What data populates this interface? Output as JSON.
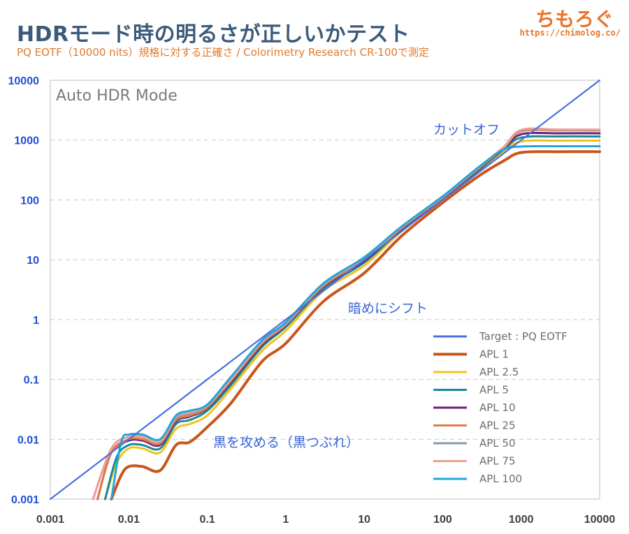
{
  "header": {
    "title": "HDRモード時の明るさが正しいかテスト",
    "subtitle": "PQ EOTF（10000 nits）規格に対する正確さ / Colorimetry Research CR-100で測定",
    "brand": "ちもろぐ",
    "url": "https://chimolog.co/"
  },
  "chart_data": {
    "type": "line",
    "xscale": "log",
    "yscale": "log",
    "xlim": [
      0.001,
      10000
    ],
    "ylim": [
      0.001,
      10000
    ],
    "x_ticks": [
      "0.001",
      "0.01",
      "0.1",
      "1",
      "10",
      "100",
      "1000",
      "10000"
    ],
    "y_ticks": [
      "0.001",
      "0.01",
      "0.1",
      "1",
      "10",
      "100",
      "1000",
      "10000"
    ],
    "grid": "horizontal-dashed",
    "legend_position": "bottom-right",
    "mode_label": "Auto HDR Mode",
    "annotations": [
      "カットオフ",
      "暗めにシフト",
      "黒を攻める（黒つぶれ）"
    ],
    "series": [
      {
        "name": "Target : PQ EOTF",
        "color": "#4a6fe0",
        "x": [
          0.001,
          10000
        ],
        "y": [
          0.001,
          10000
        ]
      },
      {
        "name": "APL 1",
        "color": "#c9561c",
        "x": [
          0.006,
          0.008,
          0.01,
          0.015,
          0.025,
          0.04,
          0.06,
          0.1,
          0.2,
          0.5,
          1,
          3,
          10,
          30,
          100,
          300,
          600,
          1000,
          3000,
          10000
        ],
        "y": [
          0.001,
          0.0025,
          0.0035,
          0.0035,
          0.003,
          0.008,
          0.009,
          0.016,
          0.04,
          0.2,
          0.4,
          2.0,
          6,
          25,
          90,
          260,
          450,
          620,
          640,
          640
        ]
      },
      {
        "name": "APL 2.5",
        "color": "#f2c21a",
        "x": [
          0.005,
          0.007,
          0.01,
          0.015,
          0.025,
          0.04,
          0.06,
          0.1,
          0.2,
          0.5,
          1,
          3,
          10,
          30,
          100,
          300,
          600,
          1000,
          3000,
          10000
        ],
        "y": [
          0.001,
          0.004,
          0.007,
          0.007,
          0.006,
          0.015,
          0.018,
          0.025,
          0.07,
          0.3,
          0.65,
          3.0,
          8,
          30,
          100,
          320,
          650,
          950,
          980,
          980
        ]
      },
      {
        "name": "APL 5",
        "color": "#1a8a9a",
        "x": [
          0.005,
          0.007,
          0.01,
          0.015,
          0.025,
          0.04,
          0.06,
          0.1,
          0.2,
          0.5,
          1,
          3,
          10,
          30,
          100,
          300,
          600,
          1000,
          3000,
          10000
        ],
        "y": [
          0.001,
          0.005,
          0.008,
          0.008,
          0.007,
          0.018,
          0.021,
          0.03,
          0.08,
          0.35,
          0.75,
          3.3,
          9,
          32,
          105,
          330,
          700,
          1100,
          1150,
          1150
        ]
      },
      {
        "name": "APL 10",
        "color": "#6b1f7a",
        "x": [
          0.004,
          0.006,
          0.01,
          0.015,
          0.025,
          0.04,
          0.06,
          0.1,
          0.2,
          0.5,
          1,
          3,
          10,
          30,
          100,
          300,
          600,
          1000,
          3000,
          10000
        ],
        "y": [
          0.001,
          0.006,
          0.0095,
          0.0095,
          0.008,
          0.02,
          0.024,
          0.033,
          0.09,
          0.38,
          0.8,
          3.5,
          9.5,
          33,
          108,
          340,
          720,
          1250,
          1300,
          1300
        ]
      },
      {
        "name": "APL 25",
        "color": "#e07b48",
        "x": [
          0.004,
          0.006,
          0.01,
          0.015,
          0.025,
          0.04,
          0.06,
          0.1,
          0.2,
          0.5,
          1,
          3,
          10,
          30,
          100,
          300,
          600,
          1000,
          3000,
          10000
        ],
        "y": [
          0.001,
          0.006,
          0.01,
          0.01,
          0.0085,
          0.021,
          0.025,
          0.034,
          0.095,
          0.4,
          0.82,
          3.6,
          10,
          34,
          110,
          350,
          740,
          1400,
          1450,
          1450
        ]
      },
      {
        "name": "APL 50",
        "color": "#8a9aa8",
        "x": [
          0.0035,
          0.006,
          0.01,
          0.015,
          0.025,
          0.04,
          0.06,
          0.1,
          0.2,
          0.5,
          1,
          3,
          10,
          30,
          100,
          300,
          600,
          1000,
          3000,
          10000
        ],
        "y": [
          0.001,
          0.007,
          0.011,
          0.011,
          0.009,
          0.023,
          0.027,
          0.036,
          0.1,
          0.42,
          0.85,
          3.8,
          10.5,
          35,
          112,
          360,
          760,
          1450,
          1480,
          1480
        ]
      },
      {
        "name": "APL 75",
        "color": "#eda090",
        "x": [
          0.0035,
          0.006,
          0.01,
          0.015,
          0.025,
          0.04,
          0.06,
          0.1,
          0.2,
          0.5,
          1,
          3,
          10,
          30,
          100,
          300,
          600,
          1000,
          3000,
          10000
        ],
        "y": [
          0.001,
          0.007,
          0.011,
          0.011,
          0.0092,
          0.024,
          0.028,
          0.037,
          0.1,
          0.43,
          0.87,
          3.9,
          10.6,
          35,
          113,
          365,
          770,
          1480,
          1500,
          1500
        ]
      },
      {
        "name": "APL 100",
        "color": "#22a6d8",
        "x": [
          0.006,
          0.008,
          0.01,
          0.015,
          0.025,
          0.04,
          0.06,
          0.1,
          0.2,
          0.5,
          1,
          3,
          10,
          30,
          100,
          300,
          600,
          1000,
          3000,
          10000
        ],
        "y": [
          0.001,
          0.009,
          0.012,
          0.012,
          0.01,
          0.025,
          0.03,
          0.038,
          0.11,
          0.45,
          0.9,
          4.0,
          11,
          36,
          115,
          370,
          700,
          780,
          790,
          790
        ]
      }
    ]
  }
}
